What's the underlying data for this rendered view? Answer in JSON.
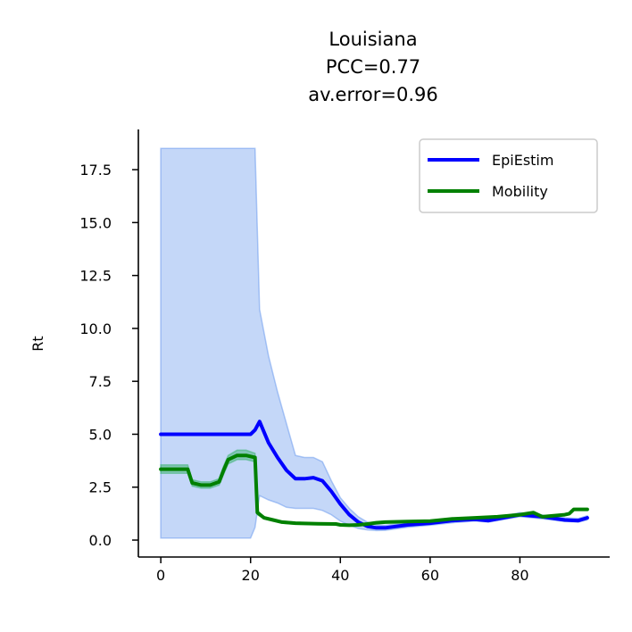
{
  "chart_data": {
    "type": "line",
    "title_lines": [
      "Louisiana",
      "PCC=0.77",
      "av.error=0.96"
    ],
    "xlabel": "",
    "ylabel": "Rt",
    "xlim": [
      -5,
      100
    ],
    "ylim": [
      -0.8,
      19.4
    ],
    "xticks": [
      0,
      20,
      40,
      60,
      80
    ],
    "xtick_labels": [
      "0",
      "20",
      "40",
      "60",
      "80"
    ],
    "yticks": [
      0,
      2.5,
      5,
      7.5,
      10,
      12.5,
      15,
      17.5
    ],
    "ytick_labels": [
      "0.0",
      "2.5",
      "5.0",
      "7.5",
      "10.0",
      "12.5",
      "15.0",
      "17.5"
    ],
    "grid": false,
    "legend_position": "top-right",
    "series": [
      {
        "name": "EpiEstim",
        "color": "#0000ff",
        "x": [
          0,
          5,
          10,
          15,
          20,
          21,
          22,
          24,
          26,
          28,
          30,
          32,
          34,
          36,
          38,
          40,
          42,
          44,
          46,
          48,
          50,
          55,
          60,
          65,
          70,
          73,
          75,
          80,
          85,
          90,
          93,
          95
        ],
        "y": [
          5.0,
          5.0,
          5.0,
          5.0,
          5.0,
          5.2,
          5.6,
          4.6,
          3.9,
          3.3,
          2.9,
          2.9,
          2.95,
          2.8,
          2.3,
          1.7,
          1.2,
          0.85,
          0.65,
          0.58,
          0.58,
          0.72,
          0.8,
          0.92,
          0.98,
          0.92,
          1.0,
          1.2,
          1.1,
          0.95,
          0.92,
          1.05
        ]
      },
      {
        "name": "Mobility",
        "color": "#008000",
        "x": [
          0,
          3,
          6,
          7,
          9,
          11,
          13,
          14,
          15,
          17,
          19,
          21,
          21.5,
          23,
          25,
          27,
          30,
          35,
          39,
          40,
          42,
          44,
          46,
          48,
          50,
          55,
          60,
          65,
          70,
          75,
          80,
          83,
          85,
          90,
          91,
          92,
          95
        ],
        "y": [
          3.35,
          3.35,
          3.35,
          2.7,
          2.6,
          2.6,
          2.75,
          3.3,
          3.8,
          4.0,
          4.0,
          3.9,
          1.3,
          1.05,
          0.95,
          0.85,
          0.8,
          0.77,
          0.76,
          0.72,
          0.7,
          0.72,
          0.76,
          0.82,
          0.85,
          0.88,
          0.9,
          1.0,
          1.05,
          1.1,
          1.2,
          1.3,
          1.1,
          1.2,
          1.25,
          1.45,
          1.45
        ]
      }
    ],
    "bands": [
      {
        "of": "EpiEstim",
        "color": "#6495ed",
        "x": [
          0,
          5,
          10,
          15,
          20,
          21,
          22,
          24,
          26,
          28,
          30,
          32,
          34,
          36,
          38,
          40,
          42,
          44,
          46,
          48,
          50,
          55,
          60,
          65,
          70,
          73,
          75,
          80,
          85,
          90,
          93,
          95
        ],
        "upper": [
          18.5,
          18.5,
          18.5,
          18.5,
          18.5,
          18.5,
          10.9,
          8.7,
          7.0,
          5.5,
          4.0,
          3.9,
          3.9,
          3.7,
          2.8,
          2.0,
          1.5,
          1.1,
          0.85,
          0.72,
          0.7,
          0.82,
          0.9,
          1.0,
          1.05,
          1.0,
          1.08,
          1.3,
          1.18,
          1.05,
          1.02,
          1.15
        ],
        "lower": [
          0.1,
          0.1,
          0.1,
          0.1,
          0.1,
          0.6,
          2.1,
          1.9,
          1.75,
          1.55,
          1.5,
          1.5,
          1.5,
          1.4,
          1.2,
          0.9,
          0.7,
          0.55,
          0.48,
          0.45,
          0.46,
          0.6,
          0.7,
          0.82,
          0.9,
          0.85,
          0.92,
          1.1,
          1.0,
          0.88,
          0.85,
          0.95
        ]
      },
      {
        "of": "Mobility",
        "color": "#3cb371",
        "x": [
          0,
          3,
          6,
          7,
          9,
          11,
          13,
          14,
          15,
          17,
          19,
          21,
          21.5,
          23,
          25,
          27,
          30,
          35,
          39,
          40
        ],
        "upper": [
          3.55,
          3.55,
          3.55,
          2.85,
          2.75,
          2.75,
          2.9,
          3.5,
          4.0,
          4.25,
          4.25,
          4.1,
          1.4,
          1.1,
          1.0,
          0.9,
          0.85,
          0.8,
          0.79,
          0.75
        ],
        "lower": [
          3.15,
          3.15,
          3.15,
          2.55,
          2.45,
          2.45,
          2.6,
          3.1,
          3.6,
          3.8,
          3.8,
          3.7,
          1.2,
          1.0,
          0.9,
          0.8,
          0.75,
          0.74,
          0.73,
          0.69
        ]
      }
    ]
  }
}
